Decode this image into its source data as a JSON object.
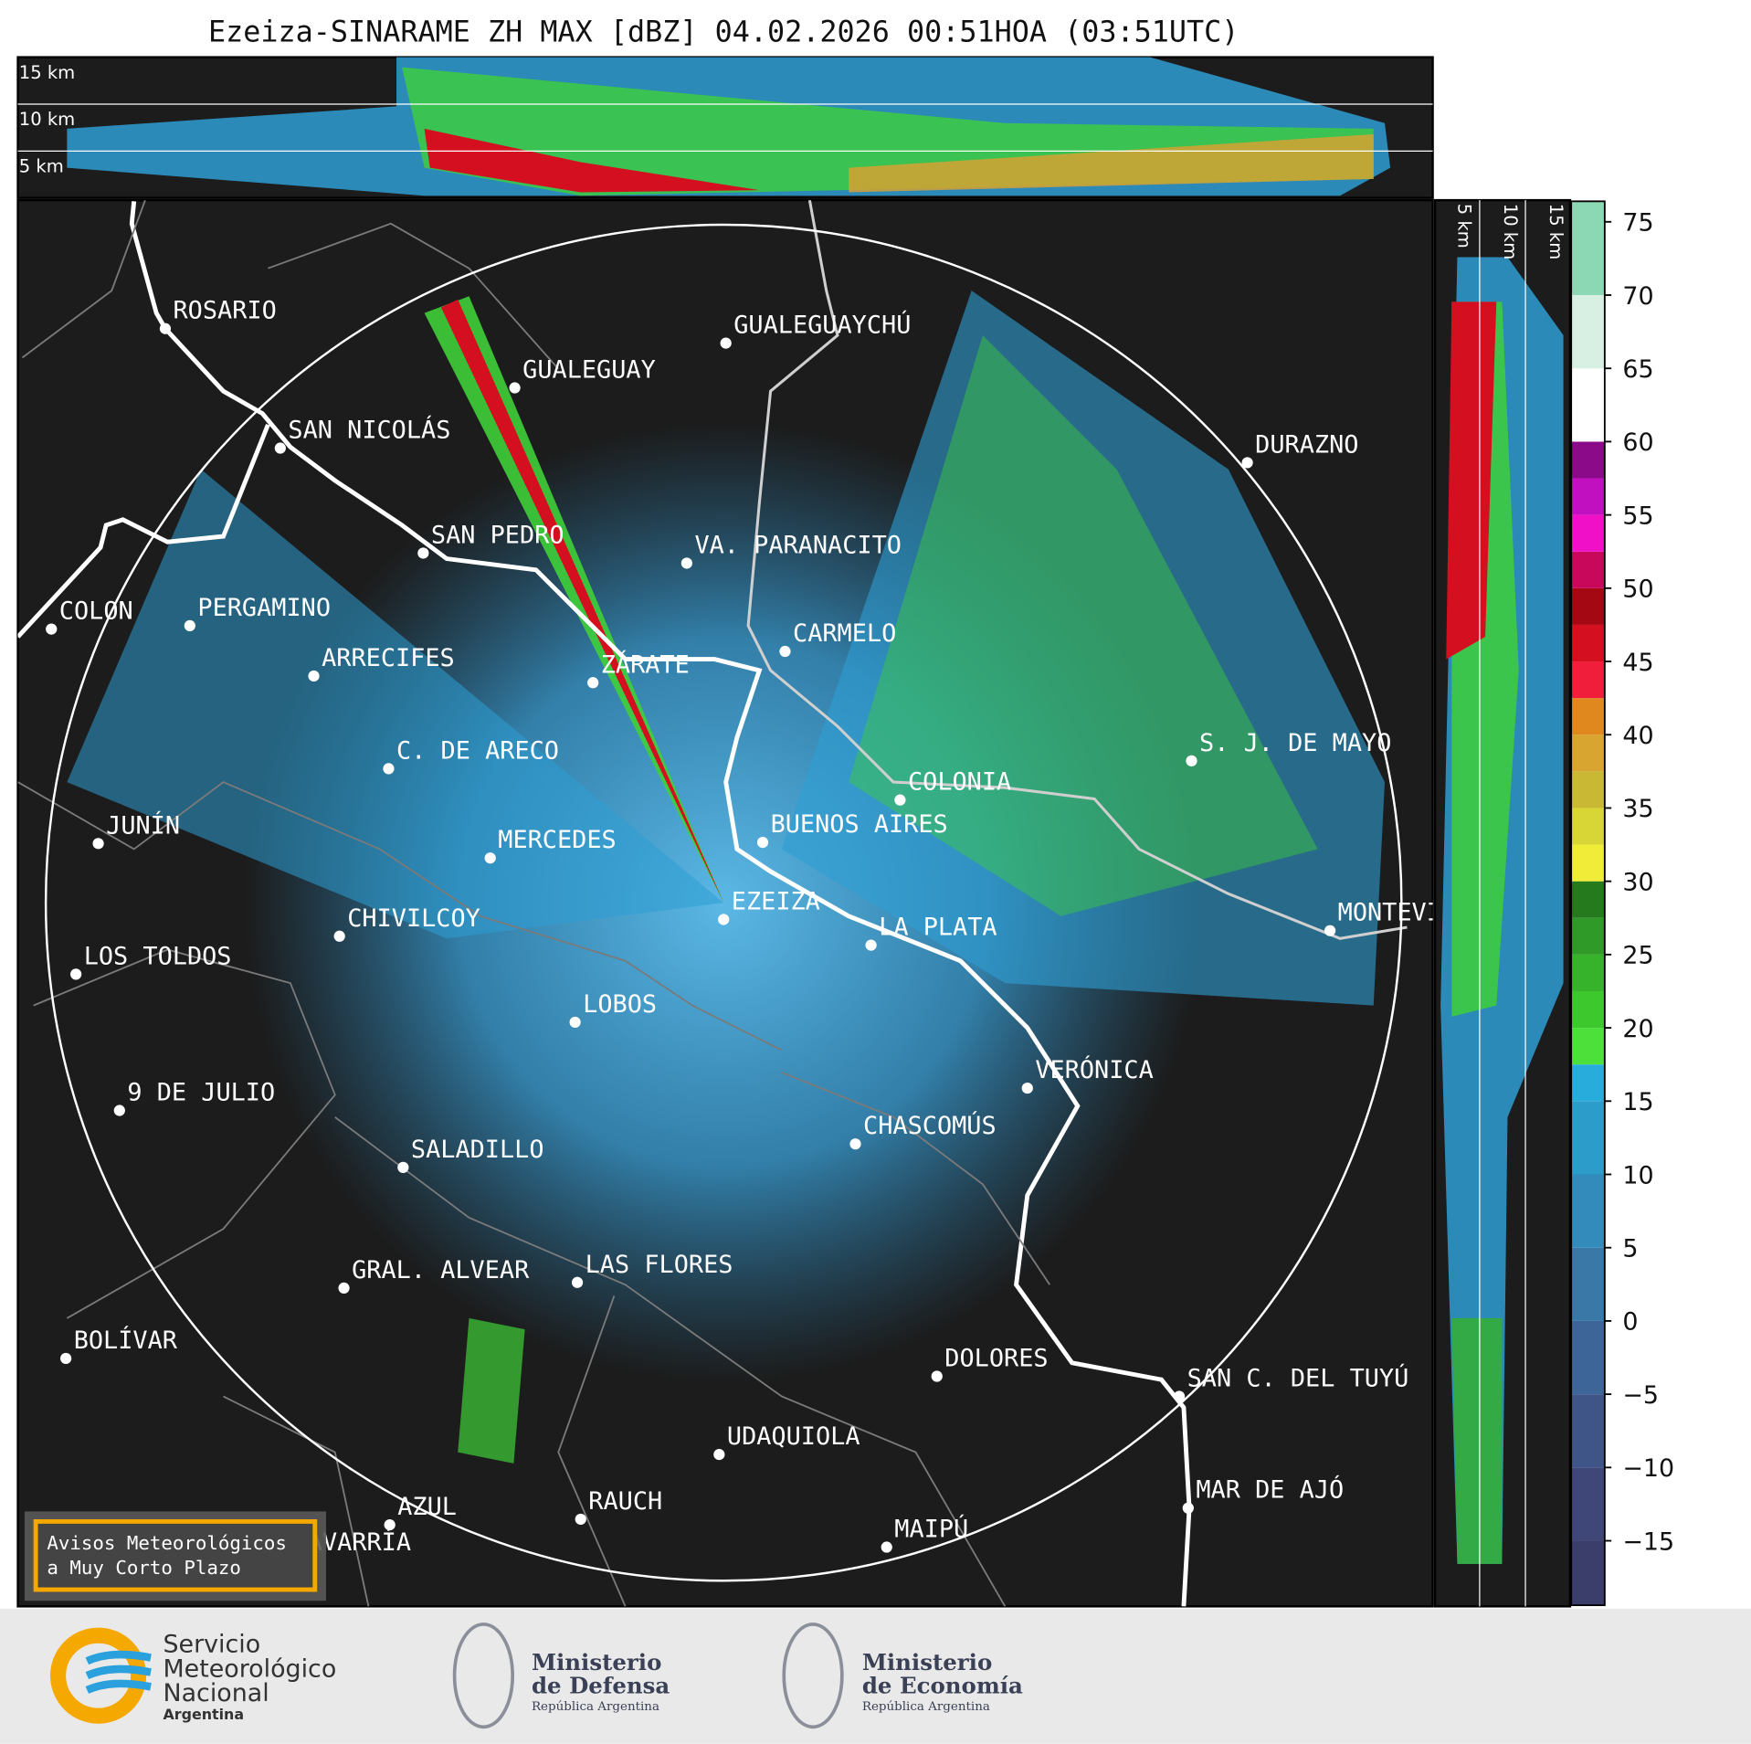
{
  "title": "Ezeiza-SINARAME ZH MAX [dBZ] 04.02.2026 00:51HOA (03:51UTC)",
  "top_panel": {
    "heights": [
      "15 km",
      "10 km",
      "5 km"
    ]
  },
  "side_panel": {
    "heights": [
      "5 km",
      "10 km",
      "15 km"
    ]
  },
  "cities": [
    {
      "name": "ROSARIO"
    },
    {
      "name": "GUALEGUAYCHÚ"
    },
    {
      "name": "GUALEGUAY"
    },
    {
      "name": "SAN NICOLÁS"
    },
    {
      "name": "DURAZNO"
    },
    {
      "name": "SAN PEDRO"
    },
    {
      "name": "VA. PARANACITO"
    },
    {
      "name": "COLON"
    },
    {
      "name": "PERGAMINO"
    },
    {
      "name": "CARMELO"
    },
    {
      "name": "ARRECIFES"
    },
    {
      "name": "ZÁRATE"
    },
    {
      "name": "S. J. DE MAYO"
    },
    {
      "name": "C. DE ARECO"
    },
    {
      "name": "COLONIA"
    },
    {
      "name": "JUNÍN"
    },
    {
      "name": "BUENOS AIRES"
    },
    {
      "name": "MERCEDES"
    },
    {
      "name": "EZEIZA"
    },
    {
      "name": "CHIVILCOY"
    },
    {
      "name": "LA PLATA"
    },
    {
      "name": "MONTEVIDEO"
    },
    {
      "name": "LOS TOLDOS"
    },
    {
      "name": "LOBOS"
    },
    {
      "name": "VERÓNICA"
    },
    {
      "name": "9 DE JULIO"
    },
    {
      "name": "CHASCOMÚS"
    },
    {
      "name": "SALADILLO"
    },
    {
      "name": "GRAL. ALVEAR"
    },
    {
      "name": "LAS FLORES"
    },
    {
      "name": "BOLÍVAR"
    },
    {
      "name": "DOLORES"
    },
    {
      "name": "SAN C. DEL TUYÚ"
    },
    {
      "name": "UDAQUIOLA"
    },
    {
      "name": "MAR DE AJÓ"
    },
    {
      "name": "AZUL"
    },
    {
      "name": "RAUCH"
    },
    {
      "name": "MAIPÚ"
    },
    {
      "name": "OLAVARRÍA"
    }
  ],
  "colorbar": {
    "lim": [
      -19.4,
      76.4
    ],
    "levels": [
      -19.4,
      -15,
      -10,
      -5,
      0,
      5,
      10,
      15,
      17.5,
      20,
      22.5,
      25,
      27.5,
      30,
      32.5,
      35,
      37.5,
      40,
      42.5,
      45,
      47.5,
      50,
      52.5,
      55,
      57.5,
      60,
      65,
      70,
      76.4
    ],
    "colors": [
      "#3b3d6b",
      "#3e4778",
      "#3f5587",
      "#3e6597",
      "#3a78a8",
      "#338bbb",
      "#2c9ccb",
      "#28acdb",
      "#4de03a",
      "#3dc92e",
      "#37b22b",
      "#2f9a27",
      "#257a1e",
      "#f0ec38",
      "#d8d536",
      "#c8b833",
      "#d8a530",
      "#e0881d",
      "#f01e3a",
      "#d40f1f",
      "#a40812",
      "#c8085a",
      "#f010c8",
      "#c010c0",
      "#8a0a8a",
      "#ffffff",
      "#d8f0e4",
      "#8cd8b4"
    ],
    "ticks": [
      75,
      70,
      65,
      60,
      55,
      50,
      45,
      40,
      35,
      30,
      25,
      20,
      15,
      10,
      5,
      0,
      {
        "value": -5,
        "label": "−5"
      },
      {
        "value": -10,
        "label": "−10"
      },
      {
        "value": -15,
        "label": "−15"
      }
    ]
  },
  "warning_box": {
    "lines": [
      "Avisos Meteorológicos",
      "a Muy Corto Plazo"
    ]
  },
  "logos": {
    "smn": [
      "Servicio",
      "Meteorológico",
      "Nacional",
      "Argentina"
    ],
    "defensa": [
      "Ministerio",
      "de Defensa",
      "República Argentina"
    ],
    "economia": [
      "Ministerio",
      "de Economía",
      "República Argentina"
    ]
  }
}
